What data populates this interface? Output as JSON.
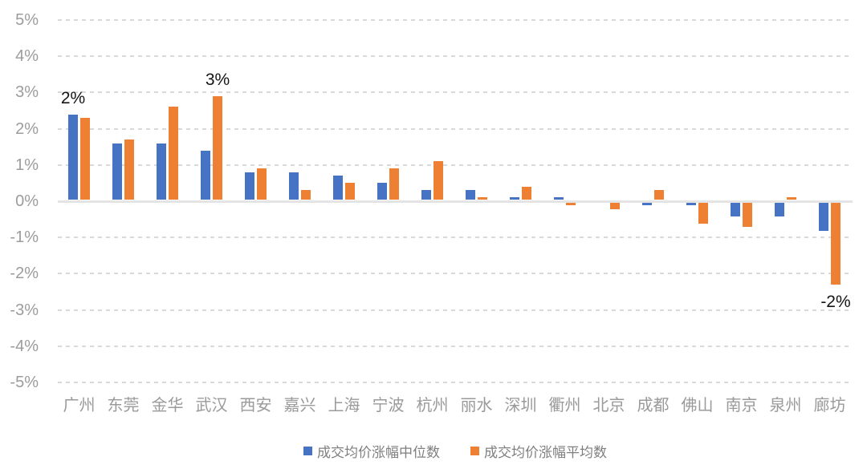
{
  "chart_data": {
    "type": "bar",
    "title": "",
    "xlabel": "",
    "ylabel": "",
    "categories": [
      "广州",
      "东莞",
      "金华",
      "武汉",
      "西安",
      "嘉兴",
      "上海",
      "宁波",
      "杭州",
      "丽水",
      "深圳",
      "衢州",
      "北京",
      "成都",
      "佛山",
      "南京",
      "泉州",
      "廊坊"
    ],
    "series": [
      {
        "name": "成交均价涨幅中位数",
        "color": "#4673c4",
        "values": [
          2.4,
          1.6,
          1.6,
          1.4,
          0.8,
          0.8,
          0.7,
          0.5,
          0.3,
          0.3,
          0.1,
          0.1,
          0,
          -0.1,
          -0.1,
          -0.4,
          -0.4,
          -0.8
        ]
      },
      {
        "name": "成交均价涨幅平均数",
        "color": "#ed8032",
        "values": [
          2.3,
          1.7,
          2.6,
          2.9,
          0.9,
          0.3,
          0.5,
          0.9,
          1.1,
          0.1,
          0.4,
          -0.1,
          -0.2,
          0.3,
          -0.6,
          -0.7,
          0.1,
          -2.3
        ]
      }
    ],
    "y_ticks": [
      "5%",
      "4%",
      "3%",
      "2%",
      "1%",
      "0%",
      "-1%",
      "-2%",
      "-3%",
      "-4%",
      "-5%"
    ],
    "y_tick_values": [
      5,
      4,
      3,
      2,
      1,
      0,
      -1,
      -2,
      -3,
      -4,
      -5
    ],
    "ylim": [
      -5,
      5
    ],
    "grid": "horizontal-dashed",
    "legend_position": "bottom",
    "annotations": [
      {
        "text": "2%",
        "category": "广州",
        "series": 0,
        "placement": "above"
      },
      {
        "text": "3%",
        "category": "武汉",
        "series": 1,
        "placement": "above"
      },
      {
        "text": "-2%",
        "category": "廊坊",
        "series": 1,
        "placement": "below"
      }
    ]
  }
}
